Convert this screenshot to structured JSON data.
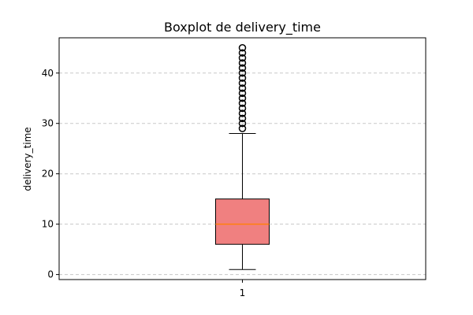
{
  "chart_data": {
    "type": "boxplot",
    "title": "Boxplot de delivery_time",
    "xlabel": "",
    "ylabel": "delivery_time",
    "categories": [
      "1"
    ],
    "ylim": [
      -1,
      47
    ],
    "yticks": [
      0,
      10,
      20,
      30,
      40
    ],
    "grid": "y-dashed",
    "boxes": [
      {
        "category": "1",
        "whisker_low": 1,
        "q1": 6,
        "median": 10,
        "q3": 15,
        "whisker_high": 28,
        "outliers": [
          29,
          30,
          31,
          32,
          33,
          34,
          35,
          36,
          37,
          38,
          39,
          40,
          41,
          42,
          43,
          44,
          45
        ]
      }
    ],
    "colors": {
      "box_fill": "#f08080",
      "median": "#ff7f0e",
      "grid": "#c8c8c8"
    }
  }
}
